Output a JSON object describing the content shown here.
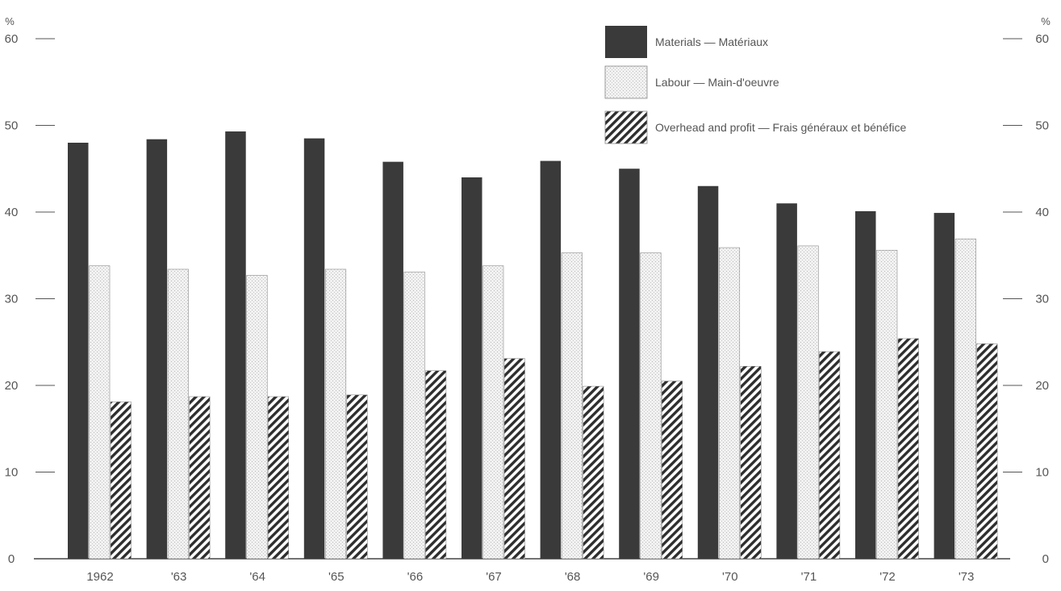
{
  "chart_data": {
    "type": "bar",
    "unit_left": "%",
    "unit_right": "%",
    "y_ticks": [
      "0",
      "10",
      "20",
      "30",
      "40",
      "50",
      "60"
    ],
    "ylim": [
      0,
      60
    ],
    "grid": false,
    "legend_position": "top-right",
    "categories": [
      "1962",
      "'63",
      "'64",
      "'65",
      "'66",
      "'67",
      "'68",
      "'69",
      "'70",
      "'71",
      "'72",
      "'73"
    ],
    "series": [
      {
        "name": "Materials — Matériaux",
        "pattern": "solid",
        "color": "#3a3a3a",
        "values": [
          48,
          48.4,
          49.3,
          48.5,
          45.8,
          44,
          45.9,
          45,
          43,
          41,
          40.1,
          39.9
        ]
      },
      {
        "name": "Labour — Main-d'oeuvre",
        "pattern": "stipple",
        "color": "#efefef",
        "values": [
          33.8,
          33.4,
          32.7,
          33.4,
          33.1,
          33.8,
          35.3,
          35.3,
          35.9,
          36.1,
          35.6,
          36.9
        ]
      },
      {
        "name": "Overhead and profit — Frais généraux et bénéfice",
        "pattern": "hatch",
        "color": "#333333",
        "values": [
          18.1,
          18.7,
          18.7,
          18.9,
          21.7,
          23.1,
          19.9,
          20.5,
          22.2,
          23.9,
          25.4,
          24.8
        ]
      }
    ]
  }
}
